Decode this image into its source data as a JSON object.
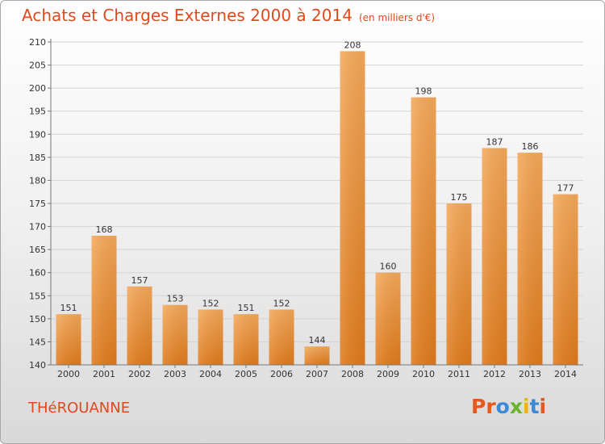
{
  "header": {
    "title": "Achats et Charges Externes 2000 à 2014",
    "unit": "(en milliers d'€)"
  },
  "footer": {
    "city": "THéROUANNE",
    "logo_text": "Proxiti"
  },
  "colors": {
    "title": "#de4a1e",
    "bar_light": "#f5a95a",
    "bar_dark": "#e07b1c",
    "logo_letters": [
      "#e8581c",
      "#e8581c",
      "#3b8ad8",
      "#6ab42d",
      "#f0b400",
      "#3b8ad8",
      "#e8581c"
    ]
  },
  "chart_data": {
    "type": "bar",
    "title": "Achats et Charges Externes 2000 à 2014",
    "subtitle": "(en milliers d'€)",
    "categories": [
      "2000",
      "2001",
      "2002",
      "2003",
      "2004",
      "2005",
      "2006",
      "2007",
      "2008",
      "2009",
      "2010",
      "2011",
      "2012",
      "2013",
      "2014"
    ],
    "values": [
      151,
      168,
      157,
      153,
      152,
      151,
      152,
      144,
      208,
      160,
      198,
      175,
      187,
      186,
      177
    ],
    "data_labels": [
      "151",
      "168",
      "157",
      "153",
      "152",
      "151",
      "152",
      "144",
      "208",
      "160",
      "198",
      "175",
      "187",
      "186",
      "177"
    ],
    "yticks": [
      "140",
      "145",
      "150",
      "155",
      "160",
      "165",
      "170",
      "175",
      "180",
      "185",
      "190",
      "195",
      "200",
      "205",
      "210"
    ],
    "ylim": [
      140,
      210
    ],
    "grid": true
  }
}
